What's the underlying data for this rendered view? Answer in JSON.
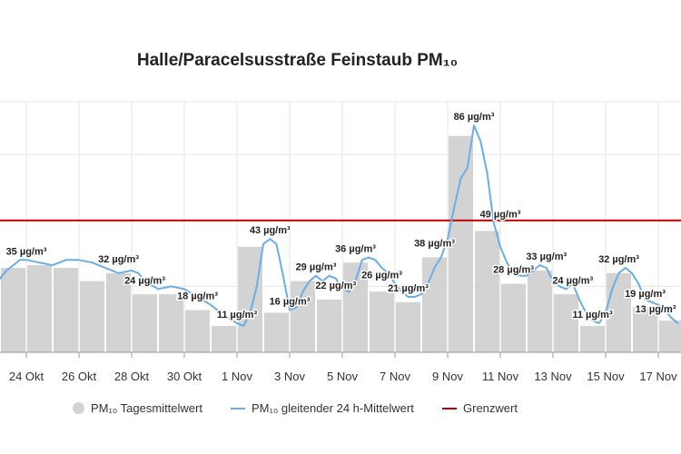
{
  "chart_data": {
    "type": "bar",
    "title": "Halle/Paracelsusstraße Feinstaub PM₁₀",
    "xlabel": "",
    "ylabel": "",
    "ylim": [
      0,
      95
    ],
    "grid": true,
    "legend_position": "bottom",
    "x_tick_labels": [
      "24 Okt",
      "26 Okt",
      "28 Okt",
      "30 Okt",
      "1 Nov",
      "3 Nov",
      "5 Nov",
      "7 Nov",
      "9 Nov",
      "11 Nov",
      "13 Nov",
      "15 Nov",
      "17 Nov"
    ],
    "daily_means": [
      {
        "day": "22 Okt",
        "value": 30
      },
      {
        "day": "23 Okt",
        "value": 32
      },
      {
        "day": "24 Okt",
        "value": 33
      },
      {
        "day": "25 Okt",
        "value": 32
      },
      {
        "day": "26 Okt",
        "value": 27
      },
      {
        "day": "27 Okt",
        "value": 30
      },
      {
        "day": "28 Okt",
        "value": 22
      },
      {
        "day": "29 Okt",
        "value": 22
      },
      {
        "day": "30 Okt",
        "value": 16
      },
      {
        "day": "31 Okt",
        "value": 10
      },
      {
        "day": "1 Nov",
        "value": 40
      },
      {
        "day": "2 Nov",
        "value": 15
      },
      {
        "day": "3 Nov",
        "value": 27
      },
      {
        "day": "4 Nov",
        "value": 20
      },
      {
        "day": "5 Nov",
        "value": 34
      },
      {
        "day": "6 Nov",
        "value": 23
      },
      {
        "day": "7 Nov",
        "value": 19
      },
      {
        "day": "8 Nov",
        "value": 36
      },
      {
        "day": "9 Nov",
        "value": 82
      },
      {
        "day": "10 Nov",
        "value": 46
      },
      {
        "day": "11 Nov",
        "value": 26
      },
      {
        "day": "12 Nov",
        "value": 31
      },
      {
        "day": "13 Nov",
        "value": 22
      },
      {
        "day": "14 Nov",
        "value": 10
      },
      {
        "day": "15 Nov",
        "value": 30
      },
      {
        "day": "16 Nov",
        "value": 17
      },
      {
        "day": "17 Nov",
        "value": 12
      }
    ],
    "moving_average": [
      {
        "t": "22 Okt 00:00",
        "v": 20
      },
      {
        "t": "22 Okt 06:00",
        "v": 22
      },
      {
        "t": "22 Okt 12:00",
        "v": 21
      },
      {
        "t": "22 Okt 18:00",
        "v": 24
      },
      {
        "t": "23 Okt 00:00",
        "v": 28
      },
      {
        "t": "23 Okt 06:00",
        "v": 31
      },
      {
        "t": "23 Okt 12:00",
        "v": 33
      },
      {
        "t": "23 Okt 18:00",
        "v": 35
      },
      {
        "t": "24 Okt 00:00",
        "v": 35
      },
      {
        "t": "24 Okt 12:00",
        "v": 34
      },
      {
        "t": "25 Okt 00:00",
        "v": 33
      },
      {
        "t": "25 Okt 12:00",
        "v": 35
      },
      {
        "t": "26 Okt 00:00",
        "v": 35
      },
      {
        "t": "26 Okt 12:00",
        "v": 34
      },
      {
        "t": "27 Okt 00:00",
        "v": 32
      },
      {
        "t": "27 Okt 12:00",
        "v": 30
      },
      {
        "t": "28 Okt 00:00",
        "v": 31
      },
      {
        "t": "28 Okt 06:00",
        "v": 30
      },
      {
        "t": "28 Okt 12:00",
        "v": 27
      },
      {
        "t": "29 Okt 00:00",
        "v": 24
      },
      {
        "t": "29 Okt 12:00",
        "v": 25
      },
      {
        "t": "30 Okt 00:00",
        "v": 24
      },
      {
        "t": "30 Okt 12:00",
        "v": 21
      },
      {
        "t": "31 Okt 00:00",
        "v": 18
      },
      {
        "t": "31 Okt 12:00",
        "v": 14
      },
      {
        "t": "1 Nov 00:00",
        "v": 11
      },
      {
        "t": "1 Nov 06:00",
        "v": 10
      },
      {
        "t": "1 Nov 12:00",
        "v": 15
      },
      {
        "t": "1 Nov 18:00",
        "v": 25
      },
      {
        "t": "2 Nov 00:00",
        "v": 41
      },
      {
        "t": "2 Nov 06:00",
        "v": 43
      },
      {
        "t": "2 Nov 12:00",
        "v": 41
      },
      {
        "t": "2 Nov 18:00",
        "v": 29
      },
      {
        "t": "3 Nov 00:00",
        "v": 16
      },
      {
        "t": "3 Nov 06:00",
        "v": 17
      },
      {
        "t": "3 Nov 12:00",
        "v": 23
      },
      {
        "t": "3 Nov 18:00",
        "v": 27
      },
      {
        "t": "4 Nov 00:00",
        "v": 29
      },
      {
        "t": "4 Nov 06:00",
        "v": 27
      },
      {
        "t": "4 Nov 12:00",
        "v": 29
      },
      {
        "t": "4 Nov 18:00",
        "v": 28
      },
      {
        "t": "5 Nov 00:00",
        "v": 24
      },
      {
        "t": "5 Nov 06:00",
        "v": 23
      },
      {
        "t": "5 Nov 12:00",
        "v": 27
      },
      {
        "t": "5 Nov 18:00",
        "v": 35
      },
      {
        "t": "6 Nov 00:00",
        "v": 36
      },
      {
        "t": "6 Nov 06:00",
        "v": 35
      },
      {
        "t": "6 Nov 12:00",
        "v": 32
      },
      {
        "t": "6 Nov 18:00",
        "v": 30
      },
      {
        "t": "7 Nov 00:00",
        "v": 26
      },
      {
        "t": "7 Nov 06:00",
        "v": 23
      },
      {
        "t": "7 Nov 12:00",
        "v": 21
      },
      {
        "t": "7 Nov 18:00",
        "v": 21
      },
      {
        "t": "8 Nov 00:00",
        "v": 22
      },
      {
        "t": "8 Nov 06:00",
        "v": 26
      },
      {
        "t": "8 Nov 12:00",
        "v": 32
      },
      {
        "t": "8 Nov 18:00",
        "v": 36
      },
      {
        "t": "9 Nov 00:00",
        "v": 43
      },
      {
        "t": "9 Nov 06:00",
        "v": 55
      },
      {
        "t": "9 Nov 12:00",
        "v": 66
      },
      {
        "t": "9 Nov 18:00",
        "v": 70
      },
      {
        "t": "10 Nov 00:00",
        "v": 86
      },
      {
        "t": "10 Nov 06:00",
        "v": 80
      },
      {
        "t": "10 Nov 12:00",
        "v": 68
      },
      {
        "t": "10 Nov 18:00",
        "v": 49
      },
      {
        "t": "11 Nov 00:00",
        "v": 40
      },
      {
        "t": "11 Nov 06:00",
        "v": 34
      },
      {
        "t": "11 Nov 12:00",
        "v": 30
      },
      {
        "t": "11 Nov 18:00",
        "v": 29
      },
      {
        "t": "12 Nov 00:00",
        "v": 29
      },
      {
        "t": "12 Nov 06:00",
        "v": 31
      },
      {
        "t": "12 Nov 12:00",
        "v": 33
      },
      {
        "t": "12 Nov 18:00",
        "v": 32
      },
      {
        "t": "13 Nov 00:00",
        "v": 27
      },
      {
        "t": "13 Nov 06:00",
        "v": 25
      },
      {
        "t": "13 Nov 12:00",
        "v": 24
      },
      {
        "t": "13 Nov 18:00",
        "v": 26
      },
      {
        "t": "14 Nov 00:00",
        "v": 20
      },
      {
        "t": "14 Nov 06:00",
        "v": 15
      },
      {
        "t": "14 Nov 12:00",
        "v": 12
      },
      {
        "t": "14 Nov 18:00",
        "v": 11
      },
      {
        "t": "15 Nov 00:00",
        "v": 15
      },
      {
        "t": "15 Nov 06:00",
        "v": 24
      },
      {
        "t": "15 Nov 12:00",
        "v": 30
      },
      {
        "t": "15 Nov 18:00",
        "v": 32
      },
      {
        "t": "16 Nov 00:00",
        "v": 30
      },
      {
        "t": "16 Nov 06:00",
        "v": 26
      },
      {
        "t": "16 Nov 12:00",
        "v": 20
      },
      {
        "t": "16 Nov 18:00",
        "v": 19
      },
      {
        "t": "17 Nov 00:00",
        "v": 18
      },
      {
        "t": "17 Nov 06:00",
        "v": 16
      },
      {
        "t": "17 Nov 12:00",
        "v": 13
      },
      {
        "t": "17 Nov 18:00",
        "v": 11
      }
    ],
    "limit_value": 50,
    "data_labels": [
      {
        "t": "24 Okt 00:00",
        "v": 35,
        "text": "35 µg/m³"
      },
      {
        "t": "27 Okt 12:00",
        "v": 32,
        "text": "32 µg/m³"
      },
      {
        "t": "28 Okt 12:00",
        "v": 24,
        "text": "24 µg/m³"
      },
      {
        "t": "30 Okt 12:00",
        "v": 18,
        "text": "18 µg/m³"
      },
      {
        "t": "1 Nov 00:00",
        "v": 11,
        "text": "11 µg/m³"
      },
      {
        "t": "2 Nov 06:00",
        "v": 43,
        "text": "43 µg/m³"
      },
      {
        "t": "3 Nov 00:00",
        "v": 16,
        "text": "16 µg/m³"
      },
      {
        "t": "4 Nov 00:00",
        "v": 29,
        "text": "29 µg/m³"
      },
      {
        "t": "4 Nov 18:00",
        "v": 22,
        "text": "22 µg/m³"
      },
      {
        "t": "5 Nov 12:00",
        "v": 36,
        "text": "36 µg/m³"
      },
      {
        "t": "6 Nov 12:00",
        "v": 26,
        "text": "26 µg/m³"
      },
      {
        "t": "7 Nov 12:00",
        "v": 21,
        "text": "21 µg/m³"
      },
      {
        "t": "8 Nov 12:00",
        "v": 38,
        "text": "38 µg/m³"
      },
      {
        "t": "10 Nov 00:00",
        "v": 86,
        "text": "86 µg/m³"
      },
      {
        "t": "11 Nov 00:00",
        "v": 49,
        "text": "49 µg/m³"
      },
      {
        "t": "11 Nov 12:00",
        "v": 28,
        "text": "28 µg/m³"
      },
      {
        "t": "12 Nov 18:00",
        "v": 33,
        "text": "33 µg/m³"
      },
      {
        "t": "13 Nov 18:00",
        "v": 24,
        "text": "24 µg/m³"
      },
      {
        "t": "14 Nov 12:00",
        "v": 11,
        "text": "11 µg/m³"
      },
      {
        "t": "15 Nov 12:00",
        "v": 32,
        "text": "32 µg/m³"
      },
      {
        "t": "16 Nov 12:00",
        "v": 19,
        "text": "19 µg/m³"
      },
      {
        "t": "17 Nov 12:00",
        "v": 13,
        "text": "13 µg/m³"
      }
    ]
  },
  "legend": {
    "daily": "PM₁₀ Tagesmittelwert",
    "moving": "PM₁₀ gleitender 24 h-Mittelwert",
    "limit": "Grenzwert"
  },
  "colors": {
    "bar": "#d3d3d3",
    "line": "#6aaee8",
    "limit": "#c00000",
    "grid": "#e6e6e6",
    "text": "#222222"
  }
}
